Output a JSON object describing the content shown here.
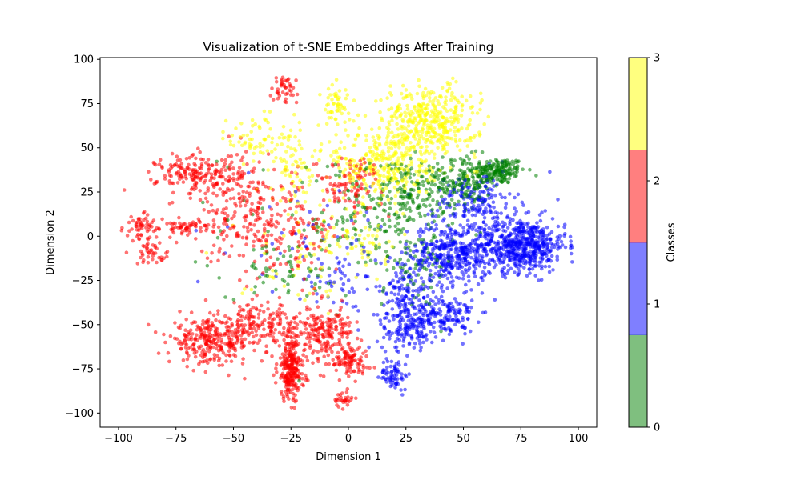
{
  "chart_data": {
    "type": "scatter",
    "title": "Visualization of t-SNE Embeddings After Training",
    "xlabel": "Dimension 1",
    "ylabel": "Dimension 2",
    "xlim": [
      -108,
      108
    ],
    "ylim": [
      -108,
      101
    ],
    "x_ticks": [
      -100,
      -75,
      -50,
      -25,
      0,
      25,
      50,
      75,
      100
    ],
    "y_ticks": [
      -100,
      -75,
      -50,
      -25,
      0,
      25,
      50,
      75,
      100
    ],
    "grid": false,
    "colorbar": {
      "label": "Classes",
      "ticks": [
        0,
        1,
        2,
        3
      ],
      "colors": [
        "#008000",
        "#0000ff",
        "#ff0000",
        "#ffff00"
      ]
    },
    "series": [
      {
        "class": 0,
        "color": "#008000",
        "clusters": [
          {
            "center": [
              65,
              37
            ],
            "spread": [
              8,
              5
            ],
            "count": 180
          },
          {
            "center": [
              50,
              30
            ],
            "spread": [
              8,
              10
            ],
            "count": 150
          },
          {
            "center": [
              30,
              25
            ],
            "spread": [
              10,
              12
            ],
            "count": 140
          },
          {
            "center": [
              15,
              10
            ],
            "spread": [
              15,
              20
            ],
            "count": 120
          },
          {
            "center": [
              -10,
              5
            ],
            "spread": [
              30,
              30
            ],
            "count": 80
          },
          {
            "center": [
              30,
              -20
            ],
            "spread": [
              10,
              15
            ],
            "count": 60
          },
          {
            "center": [
              -30,
              -20
            ],
            "spread": [
              15,
              10
            ],
            "count": 40
          }
        ]
      },
      {
        "class": 1,
        "color": "#0000ff",
        "clusters": [
          {
            "center": [
              75,
              -5
            ],
            "spread": [
              13,
              10
            ],
            "count": 600
          },
          {
            "center": [
              45,
              -10
            ],
            "spread": [
              12,
              12
            ],
            "count": 380
          },
          {
            "center": [
              40,
              -45
            ],
            "spread": [
              10,
              8
            ],
            "count": 180
          },
          {
            "center": [
              25,
              -35
            ],
            "spread": [
              8,
              15
            ],
            "count": 150
          },
          {
            "center": [
              25,
              -55
            ],
            "spread": [
              8,
              6
            ],
            "count": 80
          },
          {
            "center": [
              20,
              -78
            ],
            "spread": [
              4,
              6
            ],
            "count": 70
          },
          {
            "center": [
              55,
              20
            ],
            "spread": [
              12,
              10
            ],
            "count": 160
          },
          {
            "center": [
              0,
              -25
            ],
            "spread": [
              15,
              15
            ],
            "count": 60
          },
          {
            "center": [
              -20,
              0
            ],
            "spread": [
              20,
              20
            ],
            "count": 40
          }
        ]
      },
      {
        "class": 2,
        "color": "#ff0000",
        "clusters": [
          {
            "center": [
              -25,
              -75
            ],
            "spread": [
              4,
              12
            ],
            "count": 260
          },
          {
            "center": [
              -60,
              -60
            ],
            "spread": [
              12,
              8
            ],
            "count": 260
          },
          {
            "center": [
              -40,
              -50
            ],
            "spread": [
              15,
              8
            ],
            "count": 180
          },
          {
            "center": [
              -10,
              -55
            ],
            "spread": [
              8,
              10
            ],
            "count": 200
          },
          {
            "center": [
              0,
              -70
            ],
            "spread": [
              6,
              5
            ],
            "count": 90
          },
          {
            "center": [
              -65,
              35
            ],
            "spread": [
              12,
              8
            ],
            "count": 180
          },
          {
            "center": [
              -45,
              15
            ],
            "spread": [
              15,
              20
            ],
            "count": 200
          },
          {
            "center": [
              -90,
              5
            ],
            "spread": [
              5,
              5
            ],
            "count": 60
          },
          {
            "center": [
              -70,
              5
            ],
            "spread": [
              8,
              3
            ],
            "count": 60
          },
          {
            "center": [
              -85,
              -10
            ],
            "spread": [
              5,
              4
            ],
            "count": 40
          },
          {
            "center": [
              -25,
              0
            ],
            "spread": [
              15,
              20
            ],
            "count": 120
          },
          {
            "center": [
              0,
              30
            ],
            "spread": [
              10,
              10
            ],
            "count": 100
          },
          {
            "center": [
              -28,
              85
            ],
            "spread": [
              4,
              6
            ],
            "count": 50
          },
          {
            "center": [
              -2,
              -92
            ],
            "spread": [
              3,
              3
            ],
            "count": 30
          }
        ]
      },
      {
        "class": 3,
        "color": "#ffff00",
        "clusters": [
          {
            "center": [
              35,
              65
            ],
            "spread": [
              14,
              14
            ],
            "count": 420
          },
          {
            "center": [
              15,
              40
            ],
            "spread": [
              15,
              15
            ],
            "count": 300
          },
          {
            "center": [
              -5,
              75
            ],
            "spread": [
              4,
              8
            ],
            "count": 50
          },
          {
            "center": [
              -40,
              55
            ],
            "spread": [
              8,
              10
            ],
            "count": 60
          },
          {
            "center": [
              -25,
              40
            ],
            "spread": [
              6,
              15
            ],
            "count": 70
          },
          {
            "center": [
              -20,
              -10
            ],
            "spread": [
              20,
              20
            ],
            "count": 60
          },
          {
            "center": [
              5,
              0
            ],
            "spread": [
              10,
              10
            ],
            "count": 50
          }
        ]
      }
    ]
  }
}
